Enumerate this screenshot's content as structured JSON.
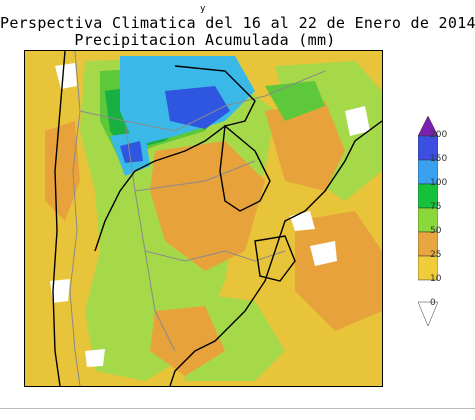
{
  "header": {
    "top_mark": "y",
    "title": "Perspectiva Climatica del 16 al 22 de Enero de 2014",
    "subtitle": "Precipitacion Acumulada (mm)"
  },
  "legend": {
    "levels": [
      {
        "label": "200",
        "color": "#7a1fb0"
      },
      {
        "label": "150",
        "color": "#3b4fe0"
      },
      {
        "label": "100",
        "color": "#3aa0f0"
      },
      {
        "label": "75",
        "color": "#16c23c"
      },
      {
        "label": "50",
        "color": "#8ad83a"
      },
      {
        "label": "25",
        "color": "#e8a640"
      },
      {
        "label": "10",
        "color": "#f0cc3a"
      },
      {
        "label": "0",
        "color": "#ffffff"
      }
    ]
  },
  "map_colors": {
    "base": "#e8c43a",
    "light_green": "#a6d94a",
    "green": "#5cc83a",
    "dark_green": "#18b040",
    "cyan": "#3ab8e8",
    "blue": "#2f56e0",
    "orange": "#e8a23c",
    "white": "#ffffff",
    "border_gray": "#8a8a8a",
    "coast_black": "#000000"
  }
}
